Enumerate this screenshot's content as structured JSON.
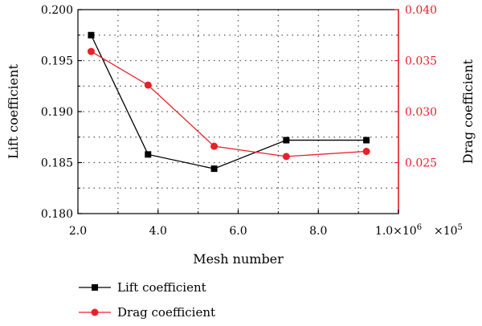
{
  "chart_data": {
    "type": "line",
    "xlabel": "Mesh number",
    "ylabel_left": "Lift coefficient",
    "ylabel_right": "Drag coefficient",
    "x_multiplier": "×10",
    "x_multiplier_exp": "5",
    "xlim": [
      2.0,
      10.0
    ],
    "ylim_left": [
      0.18,
      0.2
    ],
    "ylim_right": [
      0.02,
      0.04
    ],
    "x_ticks": [
      2.0,
      4.0,
      6.0,
      8.0,
      10.0
    ],
    "x_tick_labels": [
      "2.0",
      "4.0",
      "6.0",
      "8.0",
      "1.0×10"
    ],
    "x_tick_last_exp": "6",
    "y_left_ticks": [
      0.18,
      0.185,
      0.19,
      0.195,
      0.2
    ],
    "y_left_tick_labels": [
      "0.180",
      "0.185",
      "0.190",
      "0.195",
      "0.200"
    ],
    "y_right_ticks": [
      0.025,
      0.03,
      0.035,
      0.04
    ],
    "y_right_tick_labels": [
      "0.025",
      "0.030",
      "0.035",
      "0.040"
    ],
    "grid": true,
    "legend_position": "bottom-left",
    "series": [
      {
        "name": "Lift coefficient",
        "axis": "left",
        "marker": "square",
        "color": "#000000",
        "x": [
          2.33,
          3.75,
          5.4,
          7.2,
          9.2
        ],
        "y": [
          0.1975,
          0.1858,
          0.1844,
          0.1872,
          0.1872
        ]
      },
      {
        "name": "Drag coefficient",
        "axis": "right",
        "marker": "circle",
        "color": "#e8202a",
        "x": [
          2.33,
          3.75,
          5.4,
          7.2,
          9.2
        ],
        "y": [
          0.0359,
          0.0326,
          0.0266,
          0.0256,
          0.0261
        ]
      }
    ]
  }
}
